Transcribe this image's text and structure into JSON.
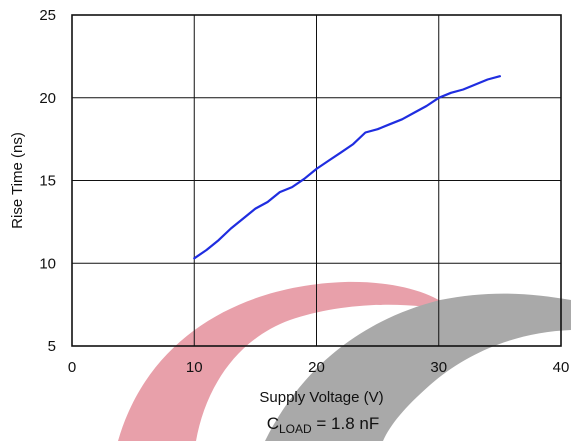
{
  "chart_data": {
    "type": "line",
    "xlabel": "Supply Voltage (V)",
    "ylabel": "Rise Time (ns)",
    "xlim": [
      0,
      40
    ],
    "ylim": [
      5,
      25
    ],
    "xticks": [
      "0",
      "10",
      "20",
      "30",
      "40"
    ],
    "yticks": [
      "5",
      "10",
      "15",
      "20",
      "25"
    ],
    "grid": true,
    "line_color": "#1f2de0",
    "series": [
      {
        "x": [
          10,
          11,
          12,
          13,
          14,
          15,
          16,
          17,
          18,
          19,
          20,
          21,
          22,
          23,
          24,
          25,
          26,
          27,
          28,
          29,
          30,
          31,
          32,
          33,
          34,
          35
        ],
        "y": [
          10.3,
          10.8,
          11.4,
          12.1,
          12.7,
          13.3,
          13.7,
          14.3,
          14.6,
          15.1,
          15.7,
          16.2,
          16.7,
          17.2,
          17.9,
          18.1,
          18.4,
          18.7,
          19.1,
          19.5,
          20.0,
          20.3,
          20.5,
          20.8,
          21.1,
          21.3
        ]
      }
    ],
    "annotation": {
      "base": "C",
      "subscript": "LOAD",
      "rest": " = 1.8 nF"
    }
  },
  "watermark": {
    "red": "#e8a0aa",
    "gray": "#a9a9a9"
  }
}
